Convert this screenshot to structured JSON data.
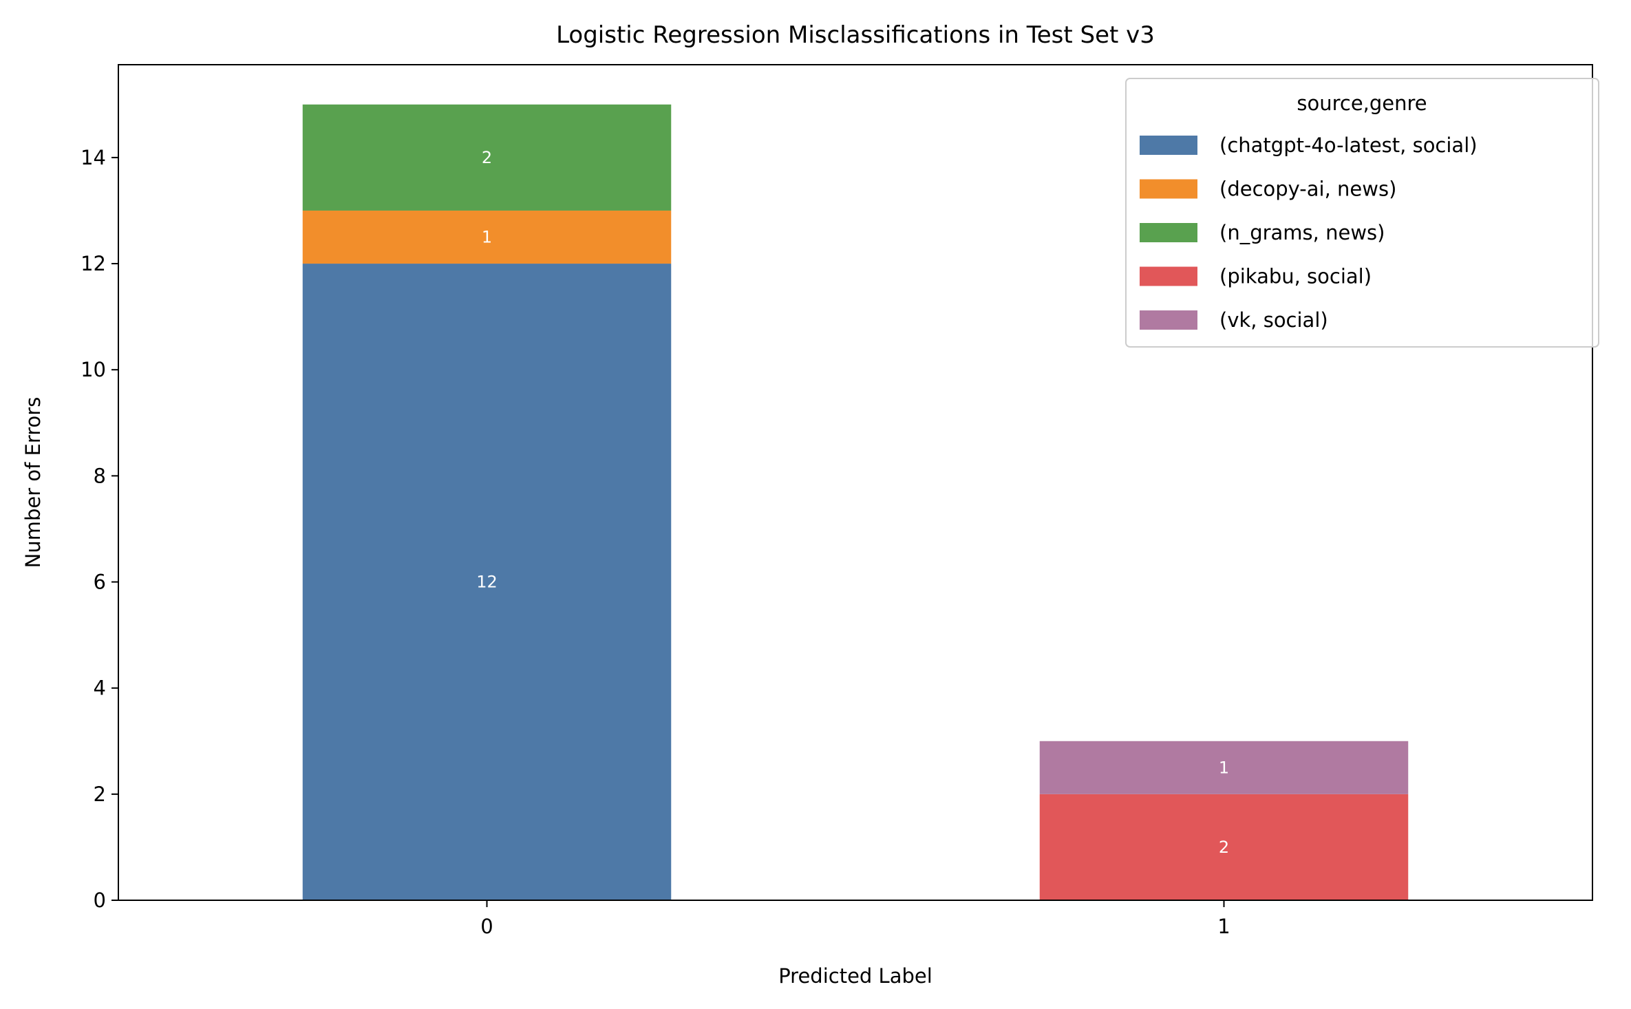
{
  "chart_data": {
    "type": "bar",
    "stacked": true,
    "title": "Logistic Regression Misclassifications in Test Set v3",
    "xlabel": "Predicted Label",
    "ylabel": "Number of Errors",
    "categories": [
      "0",
      "1"
    ],
    "ylim": [
      0,
      15.75
    ],
    "yticks": [
      0,
      2,
      4,
      6,
      8,
      10,
      12,
      14
    ],
    "grid": false,
    "legend": {
      "title": "source,genre",
      "position": "top-right"
    },
    "series": [
      {
        "name": "(chatgpt-4o-latest, social)",
        "color": "#4e79a7",
        "values": [
          12,
          0
        ]
      },
      {
        "name": "(decopy-ai, news)",
        "color": "#f28e2b",
        "values": [
          1,
          0
        ]
      },
      {
        "name": "(n_grams, news)",
        "color": "#59a14f",
        "values": [
          2,
          0
        ]
      },
      {
        "name": "(pikabu, social)",
        "color": "#e15759",
        "values": [
          0,
          2
        ]
      },
      {
        "name": "(vk, social)",
        "color": "#b07aa1",
        "values": [
          0,
          1
        ]
      }
    ]
  }
}
